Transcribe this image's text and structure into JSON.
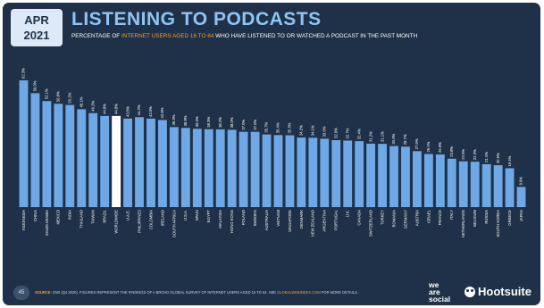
{
  "header": {
    "month": "APR",
    "year": "2021",
    "title": "LISTENING TO PODCASTS",
    "subtitle_pre": "PERCENTAGE OF ",
    "subtitle_highlight": "INTERNET USERS AGED 16 TO 64",
    "subtitle_post": " WHO HAVE LISTENED TO OR WATCHED A PODCAST IN THE PAST MONTH"
  },
  "footer": {
    "page_number": "45",
    "source_label": "SOURCE:",
    "source_text": " GWI (Q4 2020). FIGURES REPRESENT THE FINDINGS OF A BROAD GLOBAL SURVEY OF INTERNET USERS AGED 16 TO 64. SEE ",
    "source_link": "GLOBALWEBINDEX.COM",
    "source_end": " FOR MORE DETAILS.",
    "logo_line1": "we",
    "logo_line2": "are",
    "logo_line3": "social",
    "hootsuite": "Hootsuite"
  },
  "colors": {
    "background": "#1f3148",
    "bar": "#6fa8e6",
    "highlight_bar": "#ffffff",
    "title": "#8fc4f2",
    "accent": "#f29a2e"
  },
  "chart_data": {
    "type": "bar",
    "unit": "%",
    "highlight": "WORLDWIDE",
    "ylim": [
      0,
      65
    ],
    "grid": false,
    "categories": [
      "INDONESIA",
      "CHINA",
      "SAUDI ARABIA",
      "MEXICO",
      "INDIA",
      "THAILAND",
      "TAIWAN",
      "BRAZIL",
      "WORLDWIDE",
      "U.A.E.",
      "PHILIPPINES",
      "COLOMBIA",
      "IRELAND",
      "SOUTH AFRICA",
      "U.S.A.",
      "SPAIN",
      "EGYPT",
      "MALAYSIA",
      "HONG KONG",
      "POLAND",
      "SWEDEN",
      "AUSTRALIA",
      "VIETNAM",
      "SINGAPORE",
      "DENMARK",
      "NEW ZEALAND",
      "ARGENTINA",
      "PORTUGAL",
      "U.K.",
      "CANADA",
      "SWITZERLAND",
      "TURKEY",
      "ROMANIA",
      "GERMANY",
      "AUSTRIA",
      "ISRAEL",
      "FRANCE",
      "ITALY",
      "NETHERLANDS",
      "BELGIUM",
      "RUSSIA",
      "SOUTH KOREA",
      "GREECE",
      "JAPAN"
    ],
    "values": [
      62.3,
      56.0,
      52.1,
      50.8,
      50.2,
      48.1,
      46.2,
      44.8,
      44.8,
      43.5,
      44.2,
      43.5,
      42.8,
      39.3,
      38.9,
      38.5,
      38.3,
      38.2,
      38.0,
      37.0,
      37.0,
      35.7,
      35.4,
      35.3,
      34.2,
      34.1,
      33.6,
      32.9,
      32.7,
      32.4,
      31.2,
      31.1,
      30.0,
      29.7,
      27.5,
      26.1,
      25.9,
      23.8,
      22.5,
      22.3,
      21.1,
      20.6,
      19.1,
      9.9
    ],
    "labels": [
      "62.3%",
      "56.0%",
      "52.1%",
      "50.8%",
      "50.2%",
      "48.1%",
      "46.2%",
      "44.8%",
      "44.8%",
      "43.5%",
      "44.2%",
      "43.5%",
      "42.8%",
      "39.3%",
      "38.9%",
      "38.5%",
      "38.3%",
      "38.2%",
      "38.0%",
      "37.0%",
      "37.0%",
      "35.7%",
      "35.4%",
      "35.3%",
      "34.2%",
      "34.1%",
      "33.6%",
      "32.9%",
      "32.7%",
      "32.4%",
      "31.2%",
      "31.1%",
      "30.0%",
      "29.7%",
      "27.5%",
      "26.1%",
      "25.9%",
      "23.8%",
      "22.5%",
      "22.3%",
      "21.1%",
      "20.6%",
      "19.1%",
      "9.9%"
    ]
  }
}
